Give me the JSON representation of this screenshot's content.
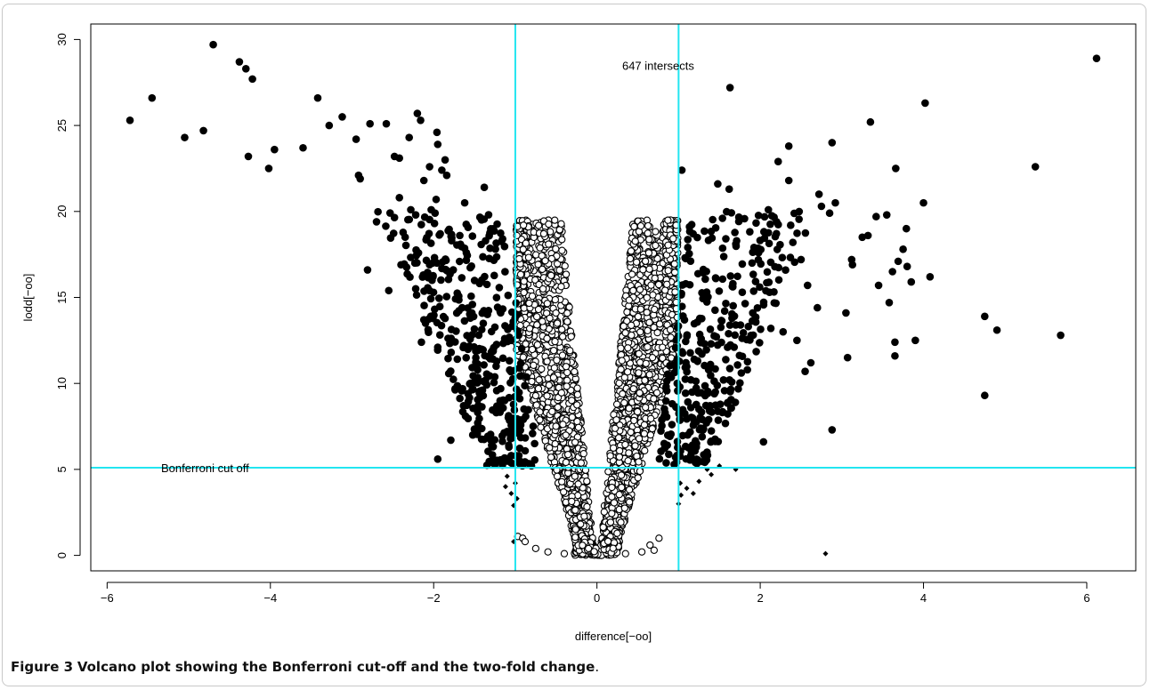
{
  "caption": {
    "label": "Figure 3",
    "title": "Volcano plot showing the Bonferroni cut-off and the two-fold change",
    "end": "."
  },
  "chart_data": {
    "type": "scatter",
    "xlabel": "difference[−oo]",
    "ylabel": "lodd[−oo]",
    "xlim": [
      -6.2,
      6.6
    ],
    "ylim": [
      -0.9,
      30.9
    ],
    "xticks": [
      -6,
      -4,
      -2,
      0,
      2,
      4,
      6
    ],
    "yticks": [
      0,
      5,
      10,
      15,
      20,
      25,
      30
    ],
    "xtick_labels": [
      "−6",
      "−4",
      "−2",
      "0",
      "2",
      "4",
      "6"
    ],
    "ytick_labels": [
      "0",
      "5",
      "10",
      "15",
      "20",
      "25",
      "30"
    ],
    "grid": false,
    "reference_lines": {
      "color": "#22e5f0",
      "horizontal": [
        5.1
      ],
      "vertical": [
        -1,
        1
      ]
    },
    "annotations": [
      {
        "text": "647 intersects",
        "x": 0.75,
        "y": 28.5
      },
      {
        "text": "Bonferroni cut off",
        "x": -4.8,
        "y": 5.1
      }
    ],
    "series": [
      {
        "marker": "filled-circle",
        "points": [
          [
            -5.72,
            25.3
          ],
          [
            -5.45,
            26.6
          ],
          [
            -5.05,
            24.3
          ],
          [
            -4.82,
            24.7
          ],
          [
            -4.7,
            29.7
          ],
          [
            -4.38,
            28.7
          ],
          [
            -4.3,
            28.3
          ],
          [
            -4.22,
            27.7
          ],
          [
            -4.27,
            23.2
          ],
          [
            -3.95,
            23.6
          ],
          [
            -4.02,
            22.5
          ],
          [
            -3.6,
            23.7
          ],
          [
            -3.42,
            26.6
          ],
          [
            -3.28,
            25.0
          ],
          [
            -3.12,
            25.5
          ],
          [
            -2.95,
            24.2
          ],
          [
            -2.92,
            22.1
          ],
          [
            -2.9,
            21.9
          ],
          [
            -2.78,
            25.1
          ],
          [
            -2.58,
            25.1
          ],
          [
            -2.48,
            23.2
          ],
          [
            -2.42,
            23.1
          ],
          [
            -2.3,
            24.3
          ],
          [
            -2.2,
            25.7
          ],
          [
            -2.16,
            25.3
          ],
          [
            -2.05,
            22.6
          ],
          [
            -1.96,
            24.6
          ],
          [
            -1.95,
            23.9
          ],
          [
            -1.9,
            22.4
          ],
          [
            -1.86,
            23.0
          ],
          [
            -1.84,
            22.1
          ],
          [
            -2.12,
            21.8
          ],
          [
            -1.97,
            20.7
          ],
          [
            -1.62,
            20.5
          ],
          [
            -1.38,
            21.4
          ],
          [
            -2.7,
            19.4
          ],
          [
            -2.42,
            20.8
          ],
          [
            -2.28,
            20.1
          ],
          [
            -2.03,
            20.1
          ],
          [
            -2.22,
            19.8
          ],
          [
            -1.99,
            19.3
          ],
          [
            -1.92,
            18.7
          ],
          [
            -2.4,
            16.9
          ],
          [
            -2.23,
            17.0
          ],
          [
            -2.05,
            16.9
          ],
          [
            -1.96,
            17.0
          ],
          [
            -2.81,
            16.6
          ],
          [
            -2.55,
            15.4
          ],
          [
            -2.22,
            15.5
          ],
          [
            -2.02,
            16.0
          ],
          [
            -1.76,
            16.6
          ],
          [
            -1.6,
            17.6
          ],
          [
            -1.78,
            18.3
          ],
          [
            -1.68,
            18.6
          ],
          [
            -2.1,
            13.5
          ],
          [
            -2.12,
            13.7
          ],
          [
            -2.15,
            12.4
          ],
          [
            -1.95,
            5.6
          ],
          [
            -1.79,
            6.7
          ],
          [
            -1.58,
            9.4
          ],
          [
            -1.61,
            8.1
          ],
          [
            -1.46,
            7.7
          ],
          [
            -1.1,
            7.2
          ],
          [
            -1.08,
            6.4
          ],
          [
            -1.05,
            5.8
          ]
        ]
      },
      {
        "marker": "filled-circle",
        "points": [
          [
            6.12,
            28.9
          ],
          [
            1.63,
            27.2
          ],
          [
            4.02,
            26.3
          ],
          [
            3.35,
            25.2
          ],
          [
            2.88,
            24.0
          ],
          [
            2.35,
            23.8
          ],
          [
            2.22,
            22.9
          ],
          [
            1.04,
            22.4
          ],
          [
            5.37,
            22.6
          ],
          [
            3.66,
            22.5
          ],
          [
            2.35,
            21.8
          ],
          [
            1.48,
            21.6
          ],
          [
            1.62,
            21.3
          ],
          [
            2.72,
            21.0
          ],
          [
            4.0,
            20.5
          ],
          [
            2.92,
            20.5
          ],
          [
            2.75,
            20.3
          ],
          [
            2.85,
            19.9
          ],
          [
            3.55,
            19.8
          ],
          [
            3.42,
            19.7
          ],
          [
            3.79,
            19.0
          ],
          [
            3.25,
            18.5
          ],
          [
            3.32,
            18.6
          ],
          [
            3.75,
            17.8
          ],
          [
            3.12,
            17.2
          ],
          [
            3.13,
            16.9
          ],
          [
            3.62,
            16.5
          ],
          [
            3.8,
            16.8
          ],
          [
            3.69,
            17.1
          ],
          [
            4.08,
            16.2
          ],
          [
            3.85,
            15.9
          ],
          [
            3.45,
            15.7
          ],
          [
            3.58,
            14.7
          ],
          [
            3.05,
            14.1
          ],
          [
            4.75,
            13.9
          ],
          [
            4.9,
            13.1
          ],
          [
            5.68,
            12.8
          ],
          [
            3.65,
            12.4
          ],
          [
            3.9,
            12.5
          ],
          [
            3.65,
            11.6
          ],
          [
            3.07,
            11.5
          ],
          [
            4.75,
            9.3
          ],
          [
            2.88,
            7.3
          ],
          [
            2.04,
            6.6
          ],
          [
            2.62,
            11.2
          ],
          [
            2.55,
            10.7
          ],
          [
            2.28,
            13.0
          ],
          [
            2.13,
            13.2
          ],
          [
            2.45,
            12.5
          ],
          [
            2.7,
            14.4
          ],
          [
            2.58,
            15.7
          ],
          [
            2.5,
            17.2
          ],
          [
            2.4,
            18.2
          ],
          [
            2.2,
            19.4
          ],
          [
            2.1,
            20.1
          ],
          [
            1.98,
            17.6
          ],
          [
            1.9,
            17.0
          ],
          [
            1.78,
            15.3
          ],
          [
            1.7,
            13.4
          ],
          [
            1.6,
            12.1
          ],
          [
            1.55,
            10.2
          ],
          [
            1.45,
            9.5
          ],
          [
            1.38,
            8.4
          ],
          [
            1.3,
            7.3
          ],
          [
            1.22,
            6.5
          ],
          [
            1.15,
            5.8
          ]
        ]
      },
      {
        "marker": "open-circle",
        "points": [
          [
            -0.97,
            1.1
          ],
          [
            -0.91,
            1.0
          ],
          [
            -0.88,
            0.8
          ],
          [
            0.7,
            0.3
          ],
          [
            0.76,
            1.0
          ],
          [
            0.65,
            0.6
          ],
          [
            -0.75,
            0.4
          ],
          [
            -0.6,
            0.2
          ],
          [
            0.55,
            0.2
          ],
          [
            -0.4,
            0.1
          ],
          [
            0.35,
            0.1
          ]
        ]
      },
      {
        "marker": "diamond",
        "points": [
          [
            -1.1,
            4.6
          ],
          [
            -1.12,
            4.0
          ],
          [
            -1.0,
            4.2
          ],
          [
            -1.05,
            3.6
          ],
          [
            -0.98,
            3.3
          ],
          [
            -1.02,
            2.9
          ],
          [
            1.02,
            4.2
          ],
          [
            1.1,
            3.9
          ],
          [
            1.03,
            3.5
          ],
          [
            1.0,
            3.0
          ],
          [
            1.18,
            3.6
          ],
          [
            1.25,
            4.3
          ],
          [
            1.4,
            4.7
          ],
          [
            1.35,
            5.0
          ],
          [
            1.5,
            5.2
          ],
          [
            1.7,
            5.0
          ],
          [
            -1.02,
            0.8
          ],
          [
            2.8,
            0.1
          ]
        ]
      }
    ]
  }
}
